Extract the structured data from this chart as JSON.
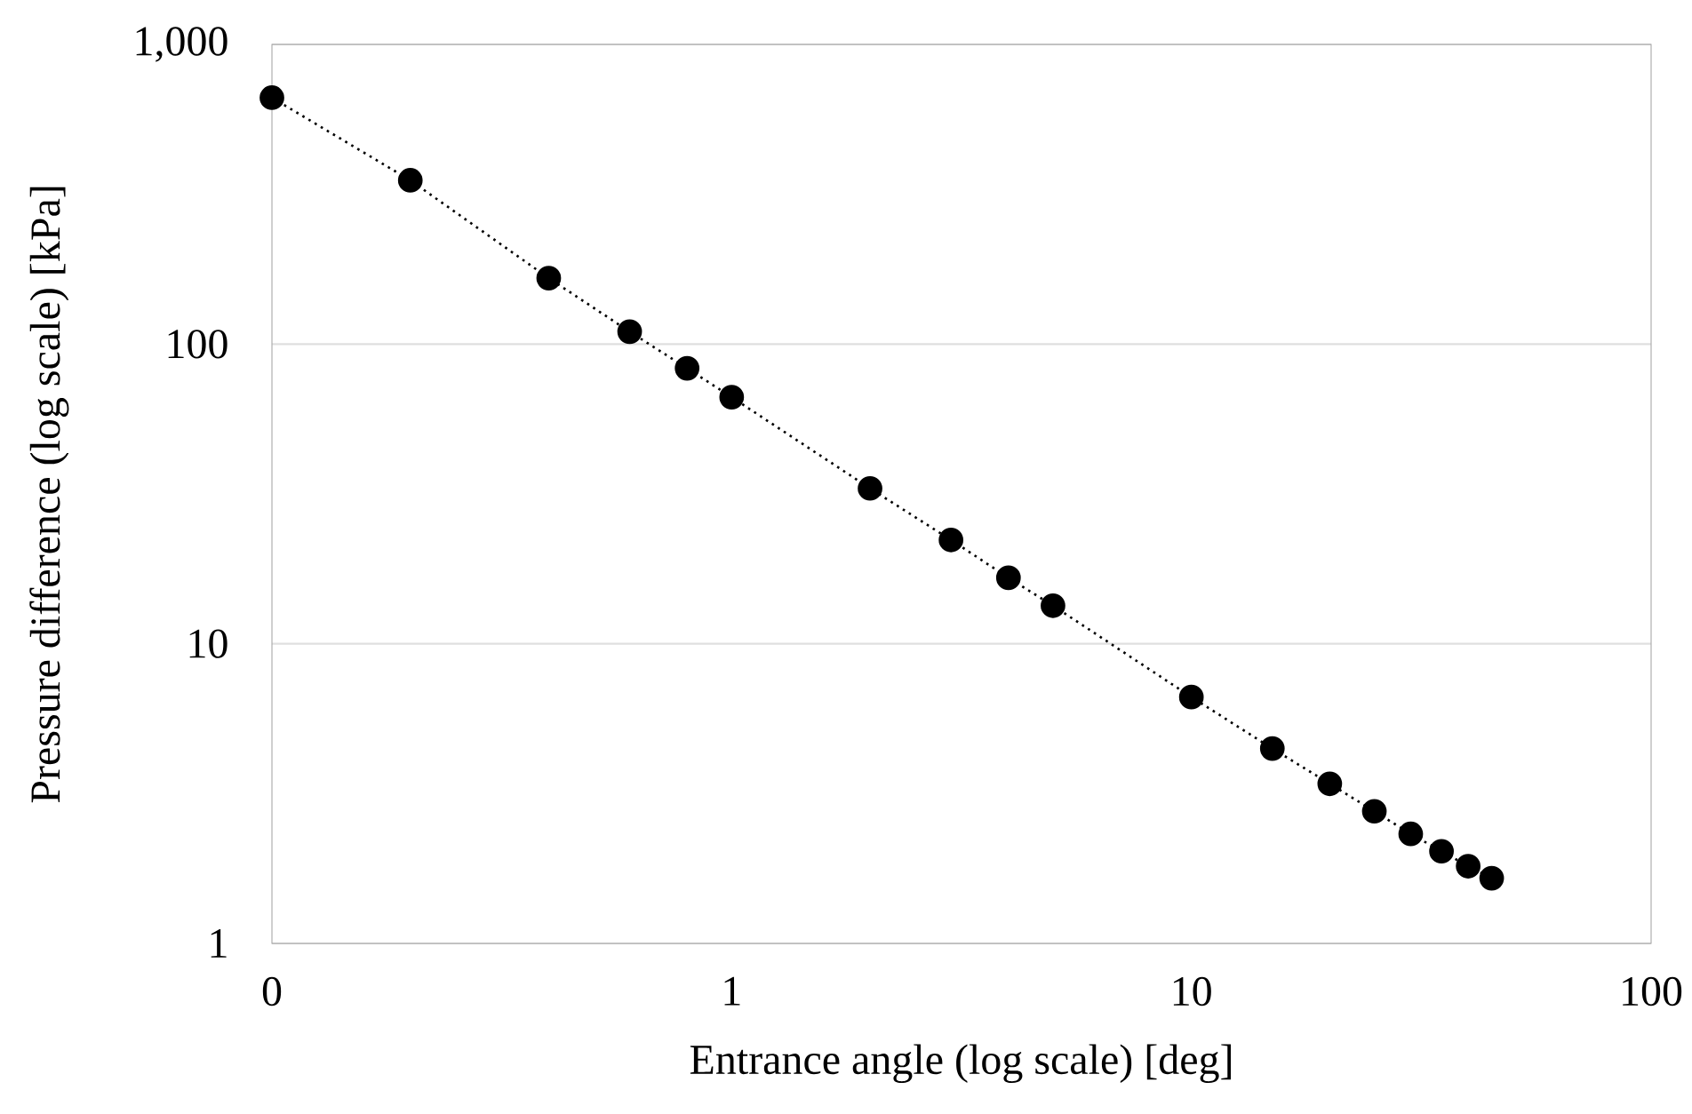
{
  "chart_data": {
    "type": "line",
    "xlabel": "Entrance angle (log scale) [deg]",
    "ylabel": "Pressure difference (log scale) [kPa]",
    "x": [
      0.1,
      0.2,
      0.4,
      0.6,
      0.8,
      1,
      2,
      3,
      4,
      5,
      10,
      15,
      20,
      25,
      30,
      35,
      40,
      45
    ],
    "series": [
      {
        "color": "#000000",
        "values": [
          664,
          352,
          166,
          110,
          83,
          66.5,
          33,
          22.2,
          16.6,
          13.4,
          6.64,
          4.47,
          3.41,
          2.76,
          2.32,
          2.03,
          1.81,
          1.65
        ]
      }
    ],
    "log": "xy",
    "xlim": [
      0.1,
      100
    ],
    "ylim": [
      1,
      1000
    ],
    "xticks": [
      {
        "value": 0.1,
        "label": "0"
      },
      1,
      10,
      100
    ],
    "yticks": [
      1,
      10,
      100,
      {
        "value": 1000,
        "label": "1,000"
      }
    ],
    "grid": "y",
    "marker": "circle",
    "line_style": "dotted"
  }
}
